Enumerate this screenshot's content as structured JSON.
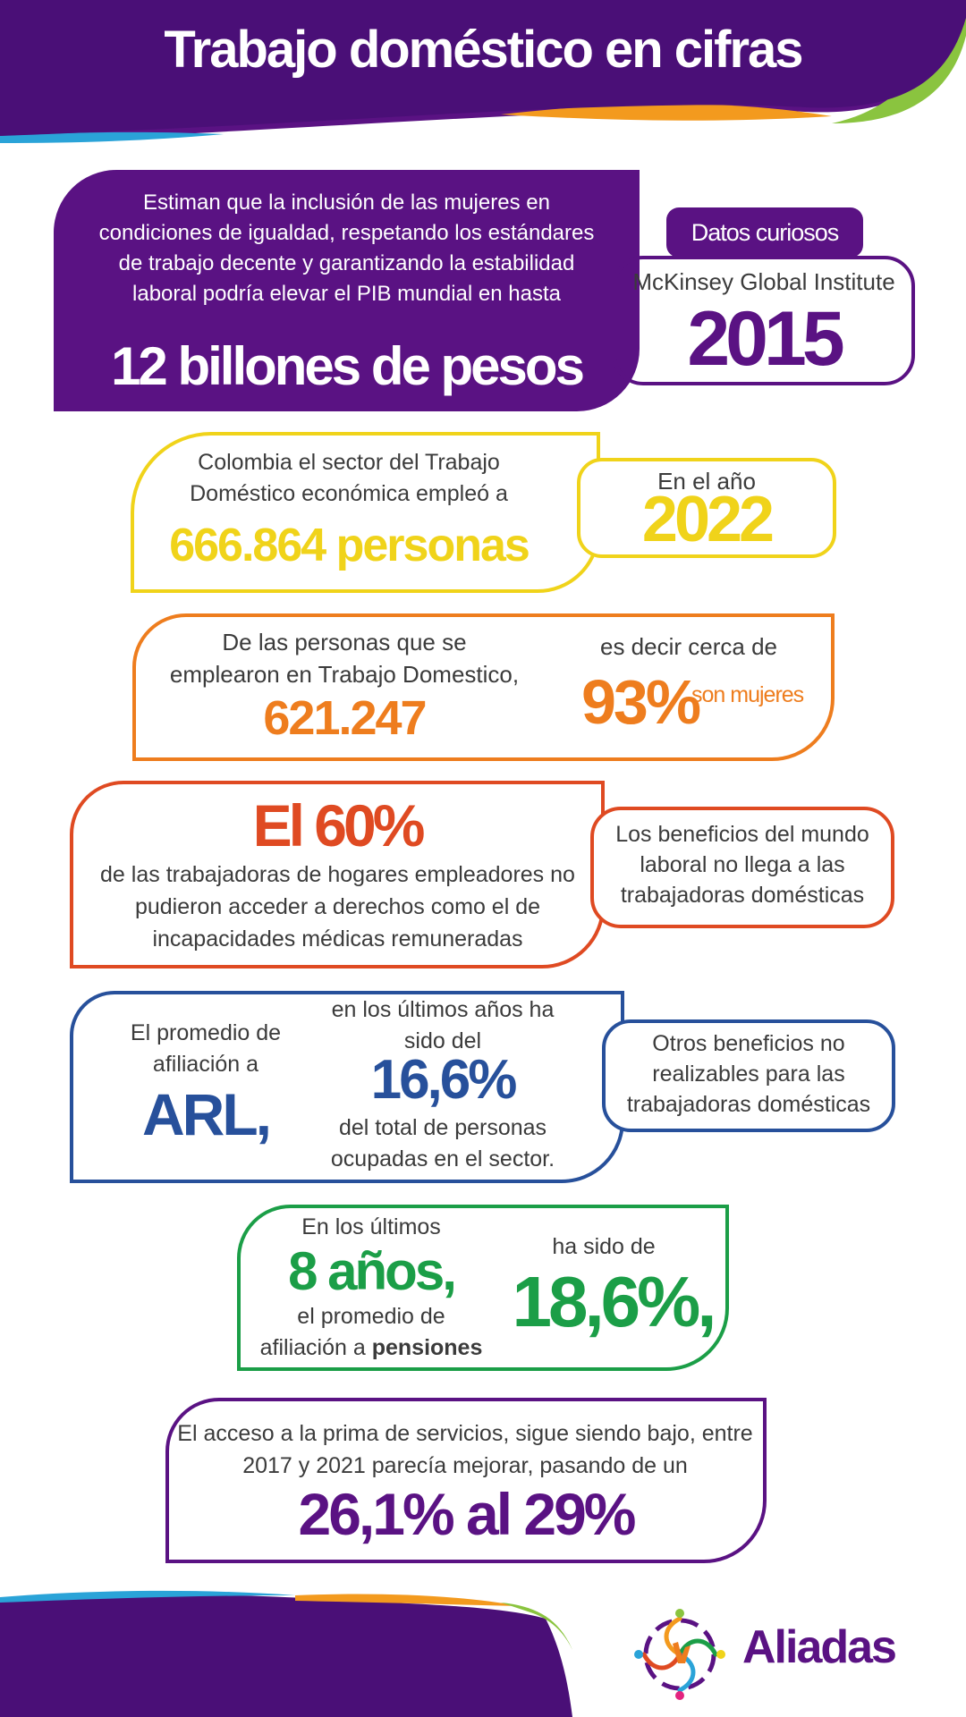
{
  "header": {
    "title": "Trabajo doméstico en cifras"
  },
  "gdp": {
    "text": "Estiman que la inclusión de las mujeres en condiciones de igualdad, respetando los estándares de trabajo decente y garantizando la estabilidad laboral podría elevar el PIB mundial en hasta",
    "highlight": "12 billones de pesos"
  },
  "curious": {
    "tab_label": "Datos curiosos",
    "source": "McKinsey Global Institute",
    "year": "2015"
  },
  "employment": {
    "text": "Colombia el sector del Trabajo Doméstico económica empleó a",
    "highlight": "666.864 personas",
    "year_label": "En el año",
    "year": "2022"
  },
  "women": {
    "text": "De las personas que se emplearon en Trabajo Domestico,",
    "count": "621.247",
    "text2": "es decir cerca de",
    "percent": "93%",
    "suffix": "son mujeres"
  },
  "rights": {
    "highlight": "El 60%",
    "text": "de las trabajadoras de hogares empleadores no pudieron acceder a derechos como el de incapacidades médicas remuneradas",
    "side_text": "Los beneficios del mundo laboral no llega a las trabajadoras domésticas"
  },
  "arl": {
    "left_text": "El promedio de afiliación a",
    "left_highlight": "ARL,",
    "top_text": "en los últimos años ha sido del",
    "percent": "16,6%",
    "bottom_text": "del total de personas ocupadas en el sector.",
    "side_text": "Otros beneficios no realizables para las trabajadoras domésticas"
  },
  "pensions": {
    "text1": "En los últimos",
    "years": "8 años,",
    "text2": "el promedio de afiliación a",
    "text2_bold": "pensiones",
    "text3": "ha sido de",
    "percent": "18,6%,"
  },
  "bonus": {
    "text": "El acceso a la prima de servicios, sigue siendo bajo, entre 2017 y 2021 parecía mejorar, pasando de un",
    "highlight": "26,1% al 29%"
  },
  "logo": {
    "name": "Aliadas"
  },
  "colors": {
    "purple": "#5a1283",
    "yellow": "#f0d31a",
    "orange": "#ee7d1e",
    "red": "#df4a22",
    "blue": "#27509b",
    "green": "#1b9e47"
  }
}
